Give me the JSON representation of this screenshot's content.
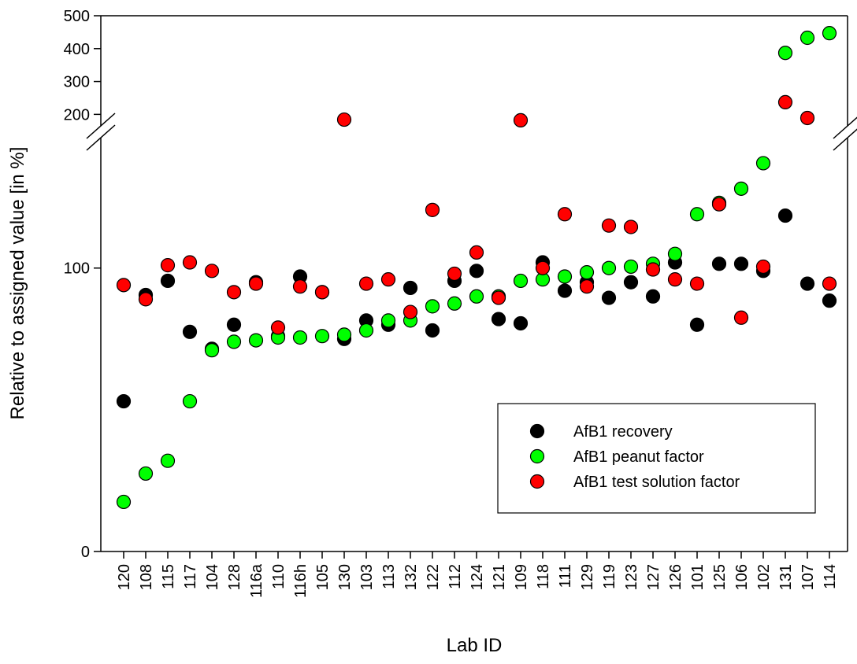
{
  "chart_data": {
    "type": "scatter",
    "x_label": "Lab ID",
    "y_label": "Relative to assigned value [in %]",
    "categories": [
      "120",
      "108",
      "115",
      "117",
      "104",
      "128",
      "116a",
      "110",
      "116h",
      "105",
      "130",
      "103",
      "113",
      "132",
      "122",
      "112",
      "124",
      "121",
      "109",
      "118",
      "111",
      "129",
      "119",
      "123",
      "127",
      "126",
      "101",
      "125",
      "106",
      "102",
      "131",
      "107",
      "114"
    ],
    "series": [
      {
        "name": "AfB1 recovery",
        "color": "#000000",
        "values": [
          53,
          90.5,
          95.5,
          77.5,
          71.5,
          80,
          95,
          76,
          97,
          91.5,
          75,
          81.5,
          80,
          93,
          78,
          95.5,
          99,
          82,
          80.5,
          102,
          92,
          95,
          89.5,
          95,
          90,
          102,
          80,
          101.5,
          101.5,
          99,
          118.5,
          94.5,
          88.5
        ]
      },
      {
        "name": "AfB1 peanut factor",
        "color": "#00ff00",
        "values": [
          17.5,
          27.5,
          32,
          53,
          71,
          74,
          74.5,
          75.5,
          75.5,
          76,
          76.5,
          78,
          81.5,
          81.5,
          86.5,
          87.5,
          90,
          90,
          95.5,
          96,
          97,
          98.5,
          100,
          100.5,
          101.5,
          105,
          119,
          123,
          128,
          137,
          387,
          433,
          447
        ]
      },
      {
        "name": "AfB1 test solution factor",
        "color": "#ff0000",
        "values": [
          94,
          89,
          101,
          102,
          99,
          91.5,
          94.5,
          79,
          93.5,
          91.5,
          184,
          94.5,
          96,
          84.5,
          120.5,
          98,
          105.5,
          89.5,
          182,
          100,
          119,
          93.5,
          115,
          114.5,
          99.5,
          96,
          94.5,
          122.5,
          82.5,
          100.5,
          237,
          189,
          94.5
        ]
      }
    ],
    "ylim": [
      0,
      500
    ],
    "y_break": [
      146,
      165
    ],
    "yticks": [
      0,
      100,
      200,
      300,
      400,
      500
    ],
    "legend": "lower-right"
  }
}
